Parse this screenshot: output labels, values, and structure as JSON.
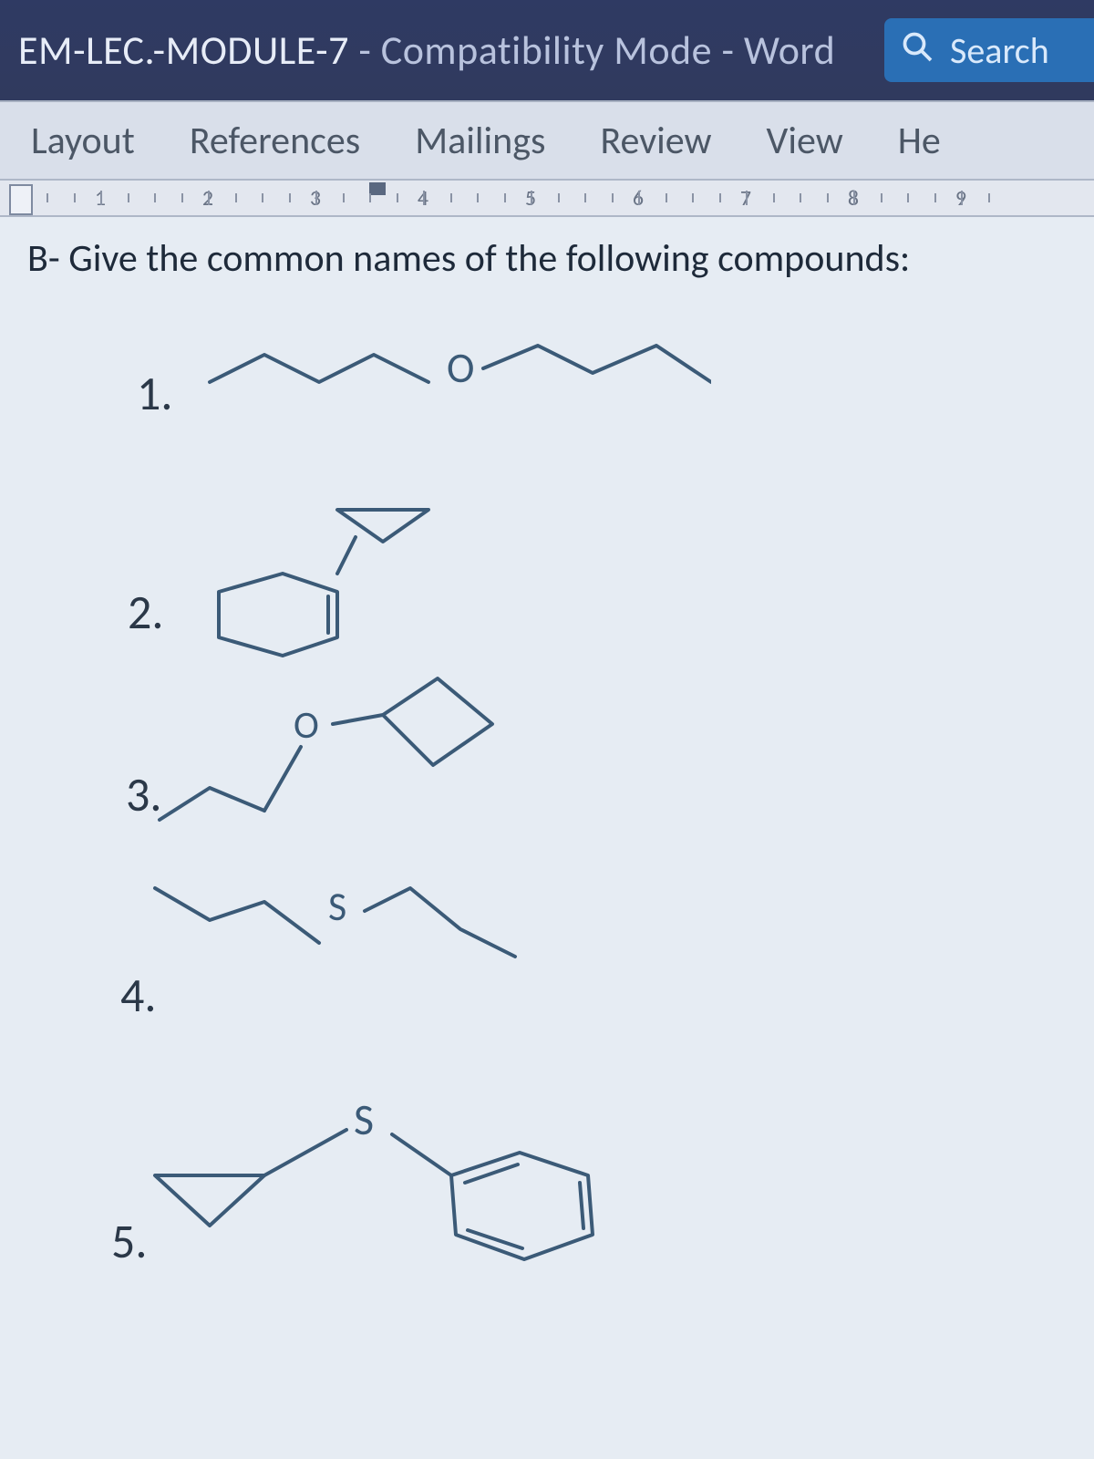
{
  "titlebar": {
    "doc_title": "EM-LEC.-MODULE-7",
    "mode": "Compatibility Mode",
    "app": "Word",
    "separator": " - ",
    "search_label": "Search"
  },
  "ribbon": {
    "tabs": [
      "Layout",
      "References",
      "Mailings",
      "Review",
      "View",
      "He"
    ]
  },
  "ruler": {
    "numbers": [
      "1",
      "2",
      "3",
      "4",
      "5",
      "6",
      "7",
      "8",
      "9"
    ]
  },
  "document": {
    "question": "B- Give the common names of the following compounds:",
    "items": [
      {
        "n": "1.",
        "atom": "O"
      },
      {
        "n": "2."
      },
      {
        "n": "3.",
        "atom": "O"
      },
      {
        "n": "4.",
        "atom": "S"
      },
      {
        "n": "5.",
        "atom": "S"
      }
    ]
  },
  "colors": {
    "titlebar_bg": "#303a5e",
    "search_bg": "#2a6fb5",
    "ribbon_bg": "#d9dfea",
    "page_bg": "#e6ecf3",
    "structure_stroke": "#3b5a77",
    "text": "#203040"
  }
}
